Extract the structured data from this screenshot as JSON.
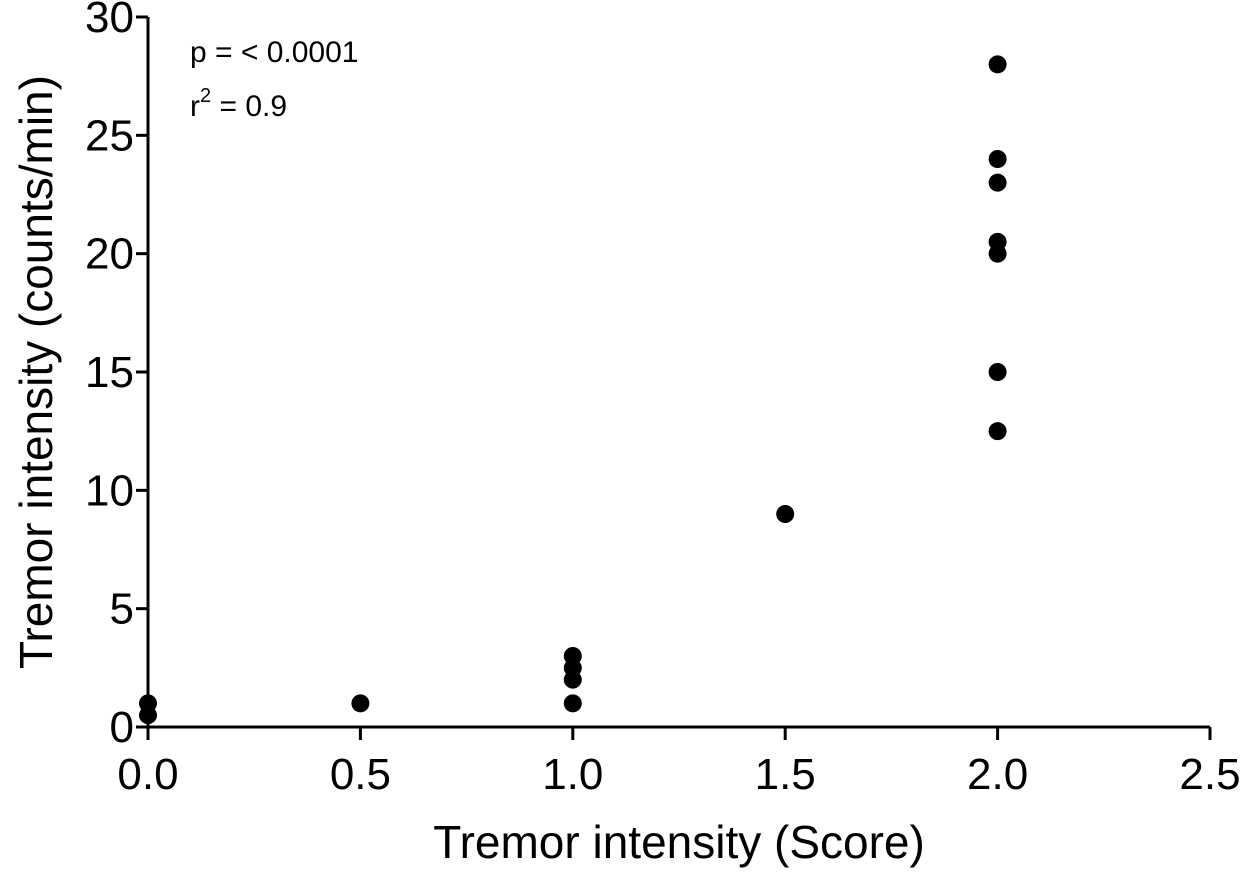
{
  "chart_data": {
    "type": "scatter",
    "title": "",
    "xlabel": "Tremor intensity (Score)",
    "ylabel": "Tremor intensity (counts/min)",
    "xlim": [
      0,
      2.5
    ],
    "ylim": [
      0,
      30
    ],
    "x_ticks": [
      "0.0",
      "0.5",
      "1.0",
      "1.5",
      "2.0",
      "2.5"
    ],
    "x_tick_values": [
      0,
      0.5,
      1.0,
      1.5,
      2.0,
      2.5
    ],
    "y_ticks": [
      "0",
      "5",
      "10",
      "15",
      "20",
      "25",
      "30"
    ],
    "y_tick_values": [
      0,
      5,
      10,
      15,
      20,
      25,
      30
    ],
    "grid": false,
    "marker_color": "#000000",
    "annotations": {
      "p_value": "p = < 0.0001",
      "r2_base": "r",
      "r2_exp": "2",
      "r2_rest": " = 0.9"
    },
    "points": [
      {
        "x": 0.0,
        "y": 1.0
      },
      {
        "x": 0.0,
        "y": 0.5
      },
      {
        "x": 0.5,
        "y": 1.0
      },
      {
        "x": 1.0,
        "y": 3.0
      },
      {
        "x": 1.0,
        "y": 2.5
      },
      {
        "x": 1.0,
        "y": 2.0
      },
      {
        "x": 1.0,
        "y": 1.0
      },
      {
        "x": 1.5,
        "y": 9.0
      },
      {
        "x": 2.0,
        "y": 28.0
      },
      {
        "x": 2.0,
        "y": 24.0
      },
      {
        "x": 2.0,
        "y": 23.0
      },
      {
        "x": 2.0,
        "y": 20.5
      },
      {
        "x": 2.0,
        "y": 20.0
      },
      {
        "x": 2.0,
        "y": 15.0
      },
      {
        "x": 2.0,
        "y": 12.5
      }
    ]
  }
}
